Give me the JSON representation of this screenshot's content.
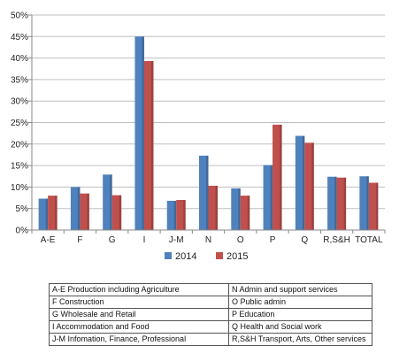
{
  "chart_data": {
    "type": "bar",
    "title": "",
    "xlabel": "",
    "ylabel": "",
    "categories": [
      "A-E",
      "F",
      "G",
      "I",
      "J-M",
      "N",
      "O",
      "P",
      "Q",
      "R,S&H",
      "TOTAL"
    ],
    "series": [
      {
        "name": "2014",
        "color": "#4f81bd",
        "values": [
          7.3,
          10.0,
          12.9,
          45.0,
          6.8,
          17.3,
          9.7,
          15.1,
          21.9,
          12.4,
          12.5
        ]
      },
      {
        "name": "2015",
        "color": "#c0504d",
        "values": [
          8.0,
          8.5,
          8.1,
          39.3,
          7.0,
          10.3,
          8.0,
          24.5,
          20.3,
          12.2,
          11.0
        ]
      }
    ],
    "ylim": [
      0,
      50
    ],
    "yticks": [
      "0%",
      "5%",
      "10%",
      "15%",
      "20%",
      "25%",
      "30%",
      "35%",
      "40%",
      "45%",
      "50%"
    ],
    "grid": true,
    "legend_position": "bottom"
  },
  "key_table": {
    "rows": [
      [
        "A-E Production including Agriculture",
        "N Admin and support services"
      ],
      [
        "F Construction",
        "O Public admin"
      ],
      [
        "G Wholesale and Retail",
        "P Education"
      ],
      [
        "I Accommodation and Food",
        "Q Health and Social work"
      ],
      [
        "J-M Infomation, Finance,  Professional",
        "R,S&H Transport, Arts, Other services"
      ]
    ]
  }
}
